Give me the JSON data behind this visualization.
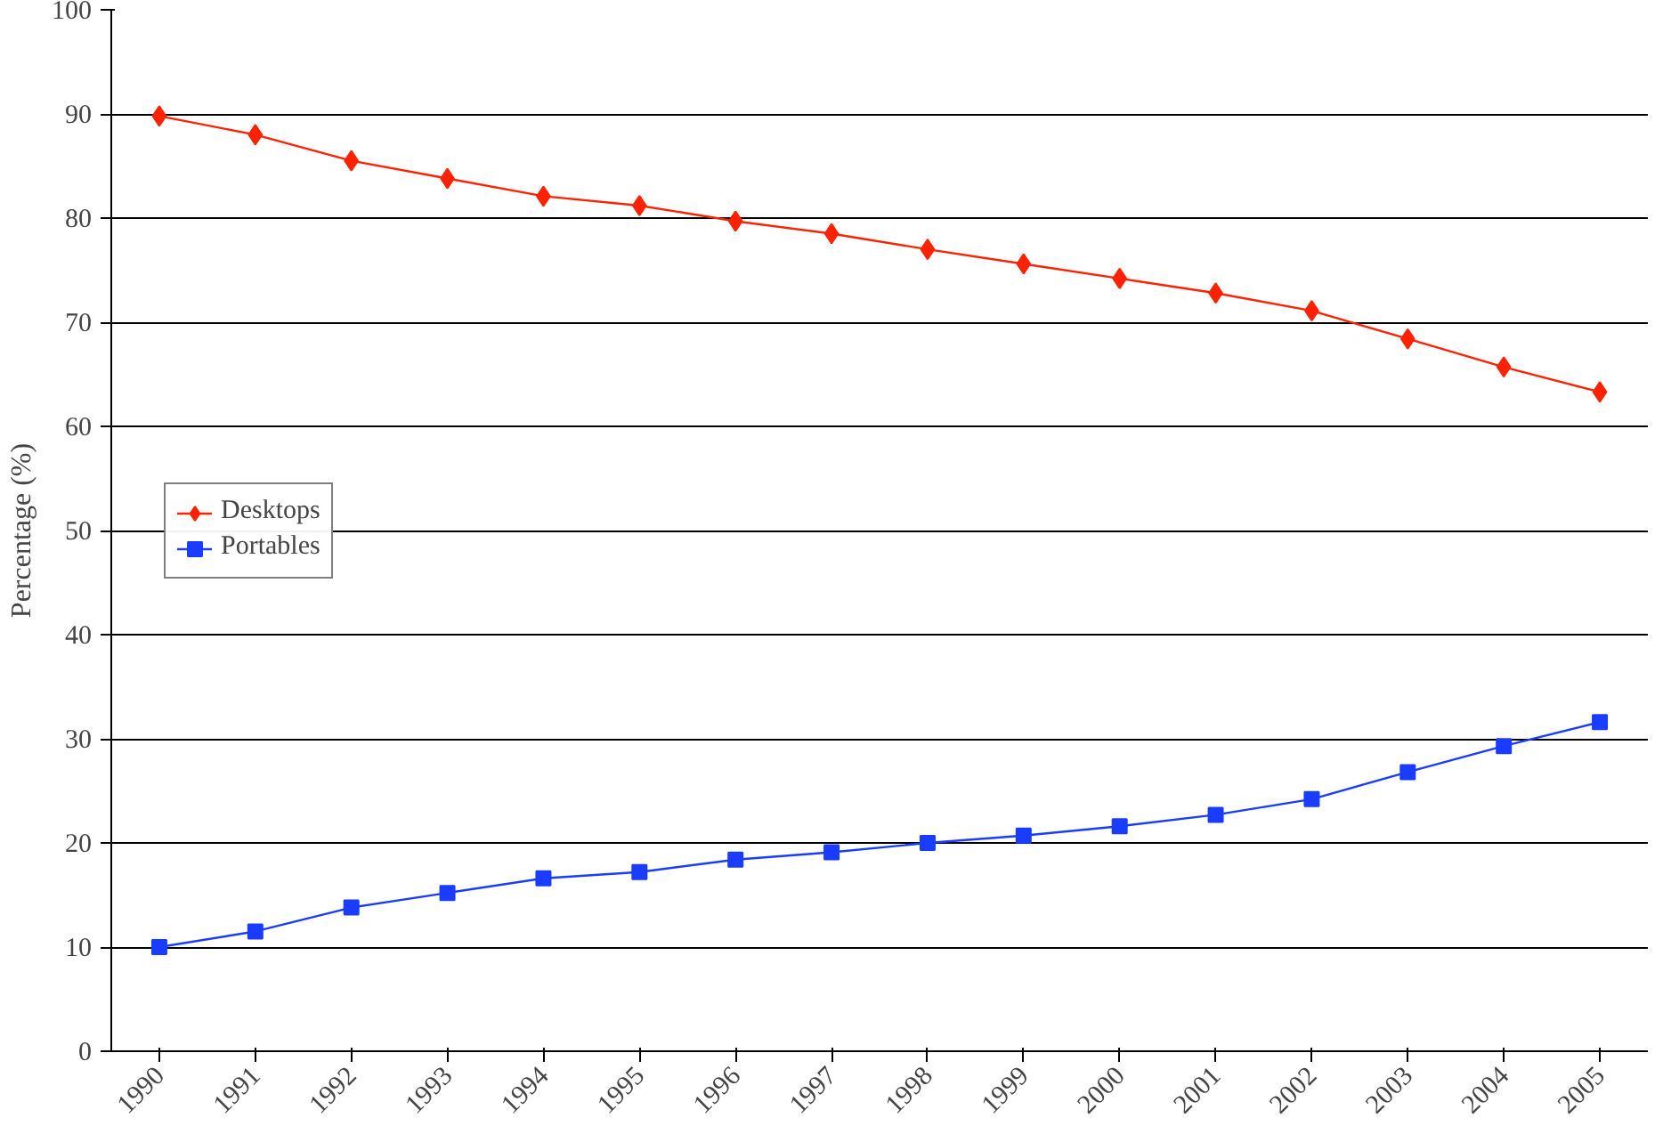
{
  "chart_data": {
    "type": "line",
    "ylabel": "Percentage (%)",
    "categories": [
      "1990",
      "1991",
      "1992",
      "1993",
      "1994",
      "1995",
      "1996",
      "1997",
      "1998",
      "1999",
      "2000",
      "2001",
      "2002",
      "2003",
      "2004",
      "2005"
    ],
    "series": [
      {
        "name": "Desktops",
        "color": "#ff2200",
        "marker": "diamond",
        "values": [
          89.8,
          88.0,
          85.5,
          83.8,
          82.1,
          81.2,
          79.7,
          78.5,
          77.0,
          75.6,
          74.2,
          72.8,
          71.1,
          68.4,
          65.7,
          63.3
        ]
      },
      {
        "name": "Portables",
        "color": "#1a3cff",
        "marker": "square",
        "values": [
          10.0,
          11.5,
          13.8,
          15.2,
          16.6,
          17.2,
          18.4,
          19.1,
          20.0,
          20.7,
          21.6,
          22.7,
          24.2,
          26.8,
          29.3,
          31.6
        ]
      }
    ],
    "ylim": [
      0,
      100
    ],
    "yticks": [
      0,
      10,
      20,
      30,
      40,
      50,
      60,
      70,
      80,
      90,
      100
    ],
    "grid": "y",
    "legend": "left",
    "line_style": "solid"
  }
}
